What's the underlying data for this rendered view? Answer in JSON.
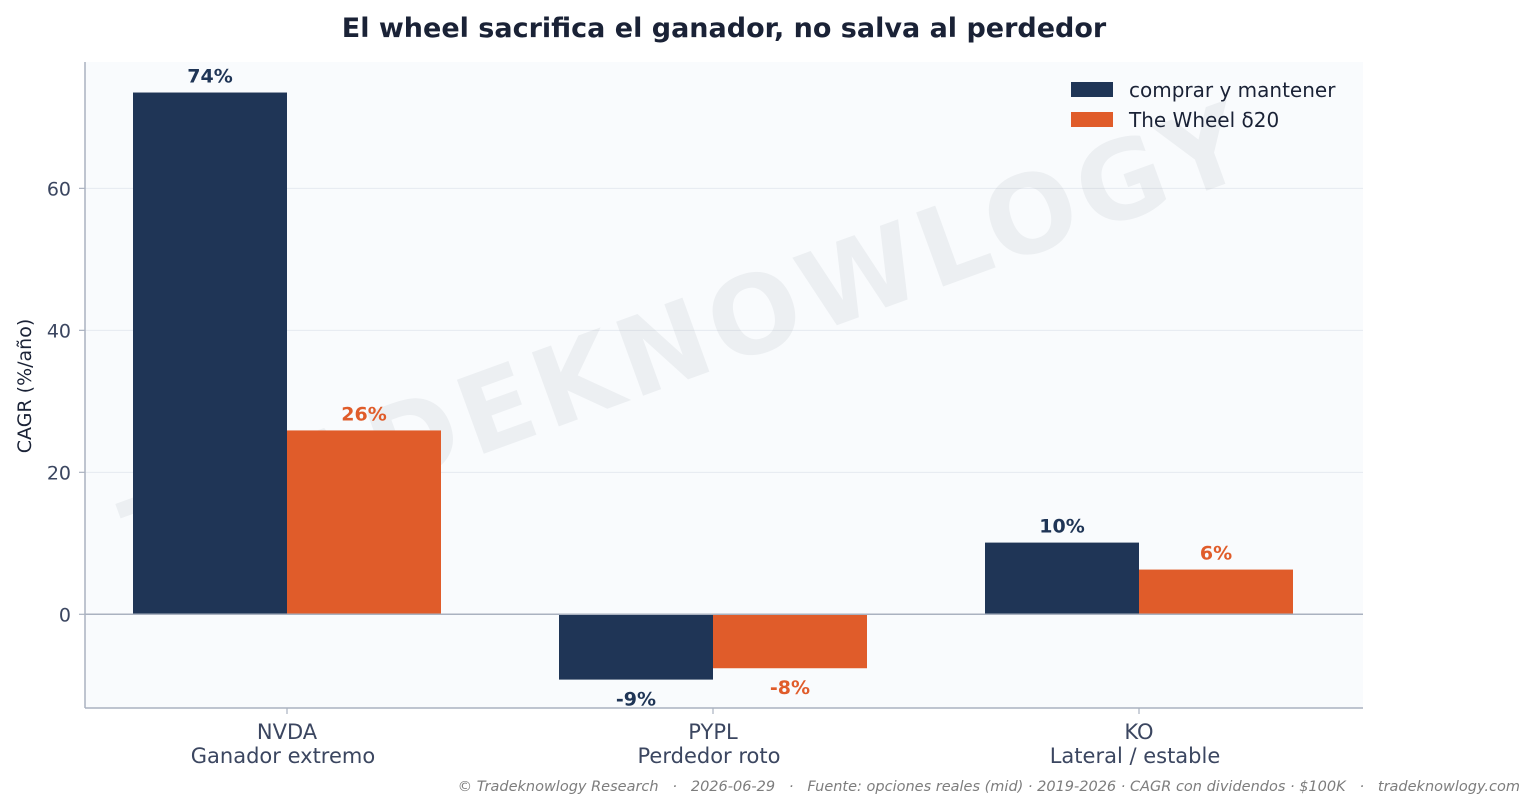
{
  "chart_data": {
    "type": "bar",
    "title": "El wheel sacrifica el ganador, no salva al perdedor",
    "xlabel": "",
    "ylabel": "CAGR (%/año)",
    "ylim": [
      -13.2,
      77.8
    ],
    "yticks": [
      0,
      20,
      40,
      60
    ],
    "categories": [
      "NVDA",
      "PYPL",
      "KO"
    ],
    "category_sublabels": [
      "Ganador extremo",
      "Perdedor roto",
      "Lateral / estable"
    ],
    "series": [
      {
        "name": "comprar y mantener",
        "color": "#1f3556",
        "values": [
          73.5,
          -9.2,
          10.1
        ],
        "labels": [
          "74%",
          "-9%",
          "10%"
        ]
      },
      {
        "name": "The Wheel δ20",
        "color": "#e05c2a",
        "values": [
          25.9,
          -7.6,
          6.3
        ],
        "labels": [
          "26%",
          "-8%",
          "6%"
        ]
      }
    ],
    "grid": "horizontal",
    "legend": "top-right"
  },
  "watermark": "TRADEKNOWLOGY",
  "footer": "© Tradeknowlogy Research   ·   2026-06-29   ·   Fuente: opciones reales (mid) · 2019-2026 · CAGR con dividendos · $100K   ·   tradeknowlogy.com"
}
